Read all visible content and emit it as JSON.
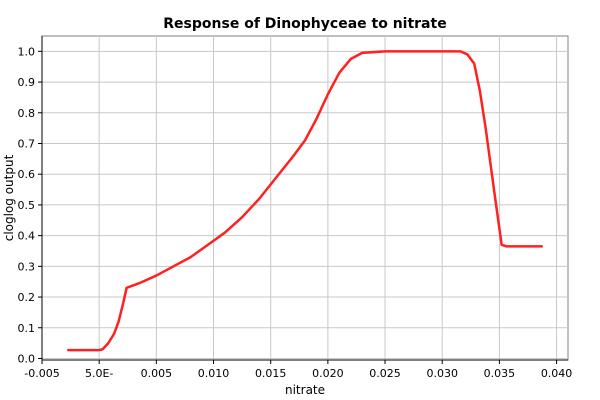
{
  "chart_data": {
    "type": "line",
    "title": "Response of Dinophyceae to nitrate",
    "xlabel": "nitrate",
    "ylabel": "cloglog output",
    "xlim": [
      -0.005,
      0.041
    ],
    "ylim": [
      -0.005,
      1.05
    ],
    "grid": true,
    "x_ticks": [
      {
        "value": -0.005,
        "label": "-0.005"
      },
      {
        "value": 0.0,
        "label": "5.0E-"
      },
      {
        "value": 0.005,
        "label": "0.005"
      },
      {
        "value": 0.01,
        "label": "0.010"
      },
      {
        "value": 0.015,
        "label": "0.015"
      },
      {
        "value": 0.02,
        "label": "0.020"
      },
      {
        "value": 0.025,
        "label": "0.025"
      },
      {
        "value": 0.03,
        "label": "0.030"
      },
      {
        "value": 0.035,
        "label": "0.035"
      },
      {
        "value": 0.04,
        "label": "0.040"
      }
    ],
    "y_ticks": [
      {
        "value": 0.0,
        "label": "0.0"
      },
      {
        "value": 0.1,
        "label": "0.1"
      },
      {
        "value": 0.2,
        "label": "0.2"
      },
      {
        "value": 0.3,
        "label": "0.3"
      },
      {
        "value": 0.4,
        "label": "0.4"
      },
      {
        "value": 0.5,
        "label": "0.5"
      },
      {
        "value": 0.6,
        "label": "0.6"
      },
      {
        "value": 0.7,
        "label": "0.7"
      },
      {
        "value": 0.8,
        "label": "0.8"
      },
      {
        "value": 0.9,
        "label": "0.9"
      },
      {
        "value": 1.0,
        "label": "1.0"
      }
    ],
    "series": [
      {
        "color": "#ff2020",
        "points": [
          {
            "x": -0.0027,
            "y": 0.027
          },
          {
            "x": -0.0015,
            "y": 0.027
          },
          {
            "x": 0.0,
            "y": 0.027
          },
          {
            "x": 0.0003,
            "y": 0.03
          },
          {
            "x": 0.0008,
            "y": 0.05
          },
          {
            "x": 0.0013,
            "y": 0.08
          },
          {
            "x": 0.0017,
            "y": 0.12
          },
          {
            "x": 0.0021,
            "y": 0.18
          },
          {
            "x": 0.0024,
            "y": 0.23
          },
          {
            "x": 0.0035,
            "y": 0.245
          },
          {
            "x": 0.005,
            "y": 0.27
          },
          {
            "x": 0.0065,
            "y": 0.3
          },
          {
            "x": 0.008,
            "y": 0.33
          },
          {
            "x": 0.0095,
            "y": 0.37
          },
          {
            "x": 0.011,
            "y": 0.41
          },
          {
            "x": 0.0125,
            "y": 0.46
          },
          {
            "x": 0.014,
            "y": 0.52
          },
          {
            "x": 0.0155,
            "y": 0.59
          },
          {
            "x": 0.017,
            "y": 0.66
          },
          {
            "x": 0.018,
            "y": 0.71
          },
          {
            "x": 0.019,
            "y": 0.78
          },
          {
            "x": 0.02,
            "y": 0.86
          },
          {
            "x": 0.021,
            "y": 0.93
          },
          {
            "x": 0.022,
            "y": 0.975
          },
          {
            "x": 0.023,
            "y": 0.995
          },
          {
            "x": 0.025,
            "y": 1.0
          },
          {
            "x": 0.027,
            "y": 1.0
          },
          {
            "x": 0.03,
            "y": 1.0
          },
          {
            "x": 0.0316,
            "y": 1.0
          },
          {
            "x": 0.0322,
            "y": 0.99
          },
          {
            "x": 0.0328,
            "y": 0.96
          },
          {
            "x": 0.0333,
            "y": 0.87
          },
          {
            "x": 0.0338,
            "y": 0.75
          },
          {
            "x": 0.0342,
            "y": 0.64
          },
          {
            "x": 0.0346,
            "y": 0.53
          },
          {
            "x": 0.0349,
            "y": 0.45
          },
          {
            "x": 0.0352,
            "y": 0.37
          },
          {
            "x": 0.0356,
            "y": 0.365
          },
          {
            "x": 0.037,
            "y": 0.365
          },
          {
            "x": 0.0387,
            "y": 0.365
          }
        ]
      }
    ]
  }
}
